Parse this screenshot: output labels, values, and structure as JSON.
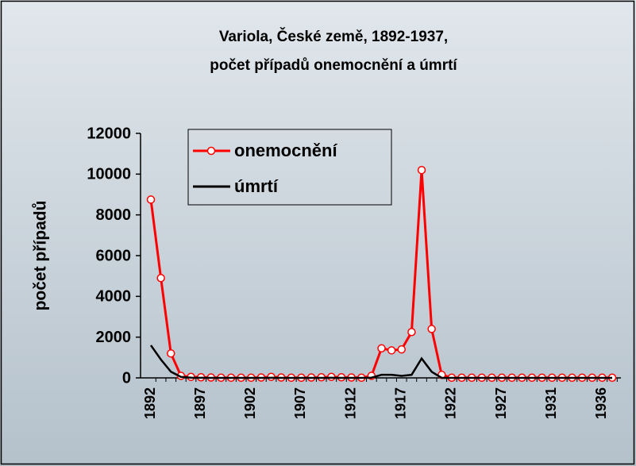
{
  "chart_data": {
    "type": "line",
    "title": [
      "Variola, České země, 1892-1937,",
      "počet případů onemocnění a úmrtí"
    ],
    "y_label": "počet případů",
    "categories": [
      1892,
      null,
      null,
      null,
      null,
      1897,
      null,
      null,
      null,
      null,
      1902,
      null,
      null,
      null,
      null,
      1907,
      null,
      null,
      null,
      null,
      1912,
      null,
      null,
      null,
      null,
      1917,
      null,
      null,
      null,
      null,
      1922,
      null,
      null,
      null,
      null,
      1927,
      null,
      null,
      null,
      null,
      1931,
      null,
      null,
      null,
      null,
      1936,
      null
    ],
    "series": [
      {
        "name": "onemocnění",
        "color": "#ff0000",
        "marker": true,
        "values": [
          8750,
          4900,
          1200,
          100,
          50,
          30,
          20,
          10,
          10,
          10,
          10,
          20,
          50,
          20,
          10,
          10,
          20,
          30,
          50,
          30,
          20,
          10,
          100,
          1450,
          1350,
          1400,
          2250,
          10200,
          2400,
          150,
          10,
          10,
          10,
          10,
          10,
          10,
          10,
          10,
          10,
          10,
          10,
          10,
          10,
          10,
          10,
          10,
          10
        ]
      },
      {
        "name": "úmrtí",
        "color": "#000000",
        "marker": false,
        "values": [
          1600,
          900,
          300,
          50,
          10,
          5,
          0,
          0,
          0,
          0,
          0,
          0,
          5,
          0,
          0,
          0,
          0,
          0,
          5,
          0,
          0,
          0,
          10,
          150,
          150,
          100,
          150,
          950,
          300,
          0,
          0,
          0,
          0,
          0,
          0,
          0,
          0,
          0,
          0,
          0,
          0,
          0,
          0,
          0,
          0,
          0,
          0
        ]
      }
    ],
    "ylim": [
      0,
      12000
    ],
    "yticks": [
      0,
      2000,
      4000,
      6000,
      8000,
      10000,
      12000
    ],
    "grid": false
  }
}
